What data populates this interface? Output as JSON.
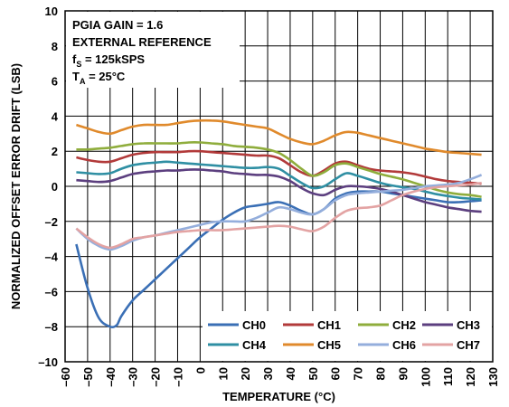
{
  "chart_data": {
    "type": "line",
    "xlabel": "TEMPERATURE (°C)",
    "ylabel": "NORMALIZED OFFSET ERROR DRIFT (LSB)",
    "xlim": [
      -60,
      130
    ],
    "ylim": [
      -10,
      10
    ],
    "xticks": [
      -60,
      -50,
      -40,
      -30,
      -20,
      -10,
      0,
      10,
      20,
      30,
      40,
      50,
      60,
      70,
      80,
      90,
      100,
      110,
      120,
      130
    ],
    "yticks": [
      -10,
      -8,
      -6,
      -4,
      -2,
      0,
      2,
      4,
      6,
      8,
      10
    ],
    "grid": true,
    "legend_position": "bottom-right",
    "annotations": [
      {
        "main": "PGIA GAIN = 1.6",
        "sub": ""
      },
      {
        "main": "EXTERNAL REFERENCE",
        "sub": ""
      },
      {
        "main": "f",
        "sub": "S",
        "rest": " = 125kSPS"
      },
      {
        "main": "T",
        "sub": "A",
        "rest": " = 25°C"
      }
    ],
    "series": [
      {
        "name": "CH0",
        "color": "#3a6fb5",
        "x": [
          -55,
          -50,
          -45,
          -40,
          -37,
          -35,
          -30,
          -25,
          -20,
          -15,
          -10,
          -5,
          0,
          5,
          10,
          15,
          20,
          25,
          30,
          35,
          40,
          45,
          50,
          55,
          60,
          65,
          70,
          75,
          80,
          85,
          90,
          95,
          100,
          105,
          110,
          115,
          120,
          125
        ],
        "y": [
          -3.3,
          -5.8,
          -7.5,
          -8.0,
          -7.9,
          -7.4,
          -6.5,
          -5.9,
          -5.3,
          -4.7,
          -4.1,
          -3.5,
          -2.9,
          -2.4,
          -1.9,
          -1.5,
          -1.2,
          -1.1,
          -1.0,
          -0.9,
          -1.1,
          -1.4,
          -1.6,
          -1.3,
          -0.7,
          -0.4,
          -0.3,
          -0.3,
          -0.3,
          -0.4,
          -0.5,
          -0.6,
          -0.7,
          -0.8,
          -0.9,
          -0.9,
          -0.85,
          -0.8
        ]
      },
      {
        "name": "CH1",
        "color": "#b23a3a",
        "x": [
          -55,
          -50,
          -45,
          -40,
          -35,
          -30,
          -25,
          -20,
          -15,
          -10,
          -5,
          0,
          5,
          10,
          15,
          20,
          25,
          30,
          35,
          40,
          45,
          50,
          55,
          60,
          65,
          70,
          75,
          80,
          85,
          90,
          95,
          100,
          105,
          110,
          115,
          120,
          125
        ],
        "y": [
          1.65,
          1.5,
          1.4,
          1.4,
          1.6,
          1.8,
          1.9,
          1.95,
          1.95,
          1.95,
          2.0,
          2.0,
          1.95,
          1.9,
          1.85,
          1.8,
          1.75,
          1.75,
          1.6,
          1.2,
          0.8,
          0.6,
          0.9,
          1.3,
          1.4,
          1.2,
          1.0,
          0.9,
          0.85,
          0.8,
          0.7,
          0.55,
          0.4,
          0.3,
          0.25,
          0.2,
          0.15
        ]
      },
      {
        "name": "CH2",
        "color": "#8fad3c",
        "x": [
          -55,
          -50,
          -45,
          -40,
          -35,
          -30,
          -25,
          -20,
          -15,
          -10,
          -5,
          0,
          5,
          10,
          15,
          20,
          25,
          30,
          35,
          40,
          45,
          50,
          55,
          60,
          65,
          70,
          75,
          80,
          85,
          90,
          95,
          100,
          105,
          110,
          115,
          120,
          125
        ],
        "y": [
          2.1,
          2.1,
          2.15,
          2.2,
          2.3,
          2.4,
          2.45,
          2.45,
          2.45,
          2.45,
          2.5,
          2.5,
          2.45,
          2.4,
          2.3,
          2.25,
          2.2,
          2.1,
          1.9,
          1.5,
          1.0,
          0.6,
          0.8,
          1.2,
          1.3,
          1.1,
          0.9,
          0.7,
          0.55,
          0.4,
          0.2,
          0.0,
          -0.2,
          -0.35,
          -0.45,
          -0.5,
          -0.6
        ]
      },
      {
        "name": "CH3",
        "color": "#5c3f7f",
        "x": [
          -55,
          -50,
          -45,
          -40,
          -35,
          -30,
          -25,
          -20,
          -15,
          -10,
          -5,
          0,
          5,
          10,
          15,
          20,
          25,
          30,
          35,
          40,
          45,
          50,
          55,
          60,
          65,
          70,
          75,
          80,
          85,
          90,
          95,
          100,
          105,
          110,
          115,
          120,
          125
        ],
        "y": [
          0.35,
          0.3,
          0.25,
          0.3,
          0.5,
          0.7,
          0.8,
          0.85,
          0.9,
          0.9,
          0.95,
          0.95,
          0.9,
          0.85,
          0.75,
          0.7,
          0.65,
          0.65,
          0.55,
          0.3,
          -0.1,
          -0.4,
          -0.5,
          -0.2,
          0.0,
          0.0,
          -0.05,
          -0.15,
          -0.3,
          -0.5,
          -0.7,
          -0.9,
          -1.05,
          -1.2,
          -1.3,
          -1.4,
          -1.45
        ]
      },
      {
        "name": "CH4",
        "color": "#2f8fa3",
        "x": [
          -55,
          -50,
          -45,
          -40,
          -35,
          -30,
          -25,
          -20,
          -15,
          -10,
          -5,
          0,
          5,
          10,
          15,
          20,
          25,
          30,
          35,
          40,
          45,
          50,
          55,
          60,
          65,
          70,
          75,
          80,
          85,
          90,
          95,
          100,
          105,
          110,
          115,
          120,
          125
        ],
        "y": [
          0.8,
          0.75,
          0.7,
          0.75,
          1.0,
          1.2,
          1.3,
          1.35,
          1.4,
          1.35,
          1.3,
          1.25,
          1.2,
          1.15,
          1.1,
          1.05,
          1.05,
          1.1,
          1.0,
          0.6,
          0.2,
          -0.1,
          0.0,
          0.4,
          0.75,
          0.6,
          0.4,
          0.2,
          0.05,
          -0.05,
          -0.15,
          -0.3,
          -0.45,
          -0.55,
          -0.65,
          -0.7,
          -0.75
        ]
      },
      {
        "name": "CH5",
        "color": "#e08a2c",
        "x": [
          -55,
          -50,
          -45,
          -40,
          -35,
          -30,
          -25,
          -20,
          -15,
          -10,
          -5,
          0,
          5,
          10,
          15,
          20,
          25,
          30,
          35,
          40,
          45,
          50,
          55,
          60,
          65,
          70,
          75,
          80,
          85,
          90,
          95,
          100,
          105,
          110,
          115,
          120,
          125
        ],
        "y": [
          3.5,
          3.3,
          3.1,
          3.0,
          3.2,
          3.4,
          3.5,
          3.5,
          3.5,
          3.6,
          3.7,
          3.75,
          3.75,
          3.7,
          3.6,
          3.5,
          3.4,
          3.3,
          3.0,
          2.7,
          2.5,
          2.4,
          2.6,
          2.9,
          3.1,
          3.05,
          2.9,
          2.75,
          2.6,
          2.45,
          2.3,
          2.15,
          2.05,
          1.95,
          1.9,
          1.85,
          1.8
        ]
      },
      {
        "name": "CH6",
        "color": "#94aedc",
        "x": [
          -55,
          -50,
          -45,
          -40,
          -35,
          -30,
          -25,
          -20,
          -15,
          -10,
          -5,
          0,
          5,
          10,
          15,
          20,
          25,
          30,
          35,
          40,
          45,
          50,
          55,
          60,
          65,
          70,
          75,
          80,
          85,
          90,
          95,
          100,
          105,
          110,
          115,
          120,
          125
        ],
        "y": [
          -2.4,
          -3.0,
          -3.4,
          -3.6,
          -3.4,
          -3.1,
          -2.9,
          -2.8,
          -2.65,
          -2.5,
          -2.35,
          -2.2,
          -2.05,
          -2.0,
          -2.0,
          -2.0,
          -1.8,
          -1.5,
          -1.2,
          -1.3,
          -1.5,
          -1.6,
          -1.3,
          -0.8,
          -0.5,
          -0.4,
          -0.35,
          -0.3,
          -0.25,
          -0.2,
          -0.1,
          0.0,
          0.05,
          0.1,
          0.2,
          0.4,
          0.65
        ]
      },
      {
        "name": "CH7",
        "color": "#e3a3a3",
        "x": [
          -55,
          -50,
          -45,
          -40,
          -35,
          -30,
          -25,
          -20,
          -15,
          -10,
          -5,
          0,
          5,
          10,
          15,
          20,
          25,
          30,
          35,
          40,
          45,
          50,
          55,
          60,
          65,
          70,
          75,
          80,
          85,
          90,
          95,
          100,
          105,
          110,
          115,
          120,
          125
        ],
        "y": [
          -2.4,
          -2.9,
          -3.3,
          -3.5,
          -3.3,
          -3.0,
          -2.9,
          -2.8,
          -2.7,
          -2.6,
          -2.55,
          -2.5,
          -2.5,
          -2.5,
          -2.45,
          -2.4,
          -2.35,
          -2.3,
          -2.25,
          -2.3,
          -2.45,
          -2.55,
          -2.3,
          -1.8,
          -1.4,
          -1.25,
          -1.2,
          -1.1,
          -0.8,
          -0.5,
          -0.3,
          -0.15,
          -0.05,
          0.0,
          0.05,
          0.1,
          0.2
        ]
      }
    ]
  }
}
